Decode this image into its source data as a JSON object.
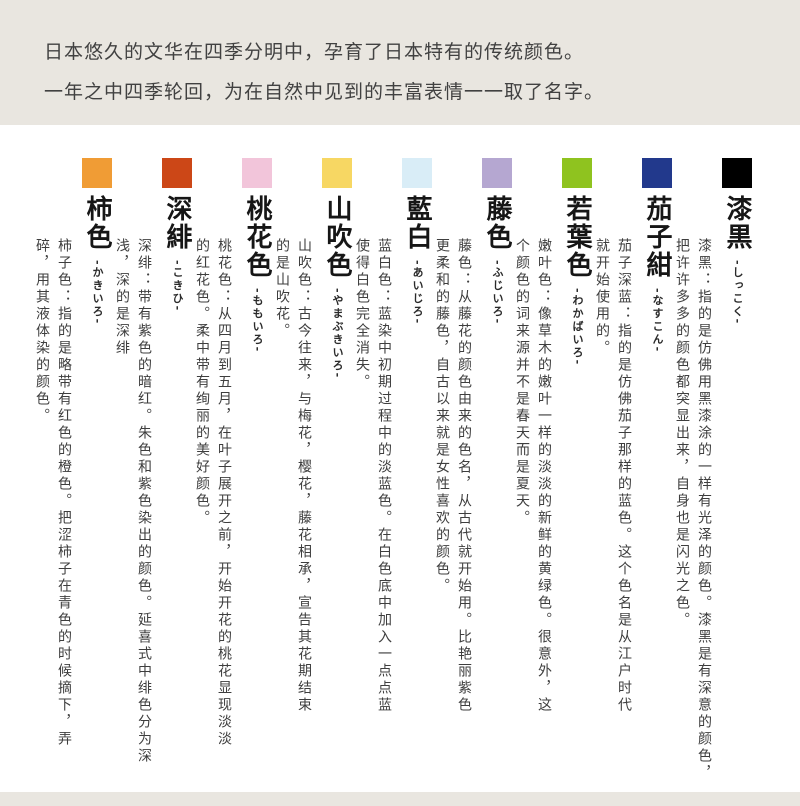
{
  "header": {
    "line1": "日本悠久的文华在四季分明中，孕育了日本特有的传统颜色。",
    "line2": "一年之中四季轮回，为在自然中见到的丰富表情一一取了名字。"
  },
  "colors": {
    "page_background": "#ffffff",
    "band_background": "#e9e6e0",
    "text": "#3e3e3e"
  },
  "columns": [
    {
      "name": "柿色",
      "reading": "-かきいろ-",
      "swatch": "#f09c35",
      "desc_lines": [
        "柿子色：指的是略带有红色的橙色。把涩柿子在青色的时候摘下，弄",
        "碎，用其液体染的颜色。"
      ]
    },
    {
      "name": "深緋",
      "reading": "-こきひ-",
      "swatch": "#cc4717",
      "desc_lines": [
        "深绯：带有紫色的暗红。朱色和紫色染出的颜色。延喜式中绯色分为深",
        "浅，深的是深绯"
      ]
    },
    {
      "name": "桃花色",
      "reading": "-ももいろ-",
      "swatch": "#f2c5da",
      "desc_lines": [
        "桃花色：从四月到五月，在叶子展开之前，开始开花的桃花显现淡淡",
        "的红花色。柔中带有绚丽的美好颜色。"
      ]
    },
    {
      "name": "山吹色",
      "reading": "-やまぶきいろ-",
      "swatch": "#f7d763",
      "desc_lines": [
        "山吹色：古今往来，与梅花，樱花，藤花相承，宣告其花期结束",
        "的是山吹花。"
      ]
    },
    {
      "name": "藍白",
      "reading": "-あいじろ-",
      "swatch": "#d9edf7",
      "desc_lines": [
        "蓝白色：蓝染中初期过程中的淡蓝色。在白色底中加入一点点蓝",
        "使得白色完全消失。"
      ]
    },
    {
      "name": "藤色",
      "reading": "-ふじいろ-",
      "swatch": "#b5a7d1",
      "desc_lines": [
        "藤色：从藤花的颜色由来的色名，从古代就开始用。比艳丽紫色",
        "更柔和的藤色，自古以来就是女性喜欢的颜色。"
      ]
    },
    {
      "name": "若葉色",
      "reading": "-わかばいろ-",
      "swatch": "#8fc31f",
      "desc_lines": [
        "嫩叶色：像草木的嫩叶一样的淡淡的新鲜的黄绿色。很意外，这",
        "个颜色的词来源并不是春天而是夏天。"
      ]
    },
    {
      "name": "茄子紺",
      "reading": "-なすこん-",
      "swatch": "#22398c",
      "desc_lines": [
        "茄子深蓝：指的是仿佛茄子那样的蓝色。这个色名是从江户时代",
        "就开始使用的。"
      ]
    },
    {
      "name": "漆黒",
      "reading": "-しっこく-",
      "swatch": "#000000",
      "desc_lines": [
        "漆黑：指的是仿佛用黑漆涂的一样有光泽的颜色。漆黑是有深意的颜色，",
        "把许许多多的颜色都突显出来，自身也是闪光之色。"
      ]
    }
  ]
}
